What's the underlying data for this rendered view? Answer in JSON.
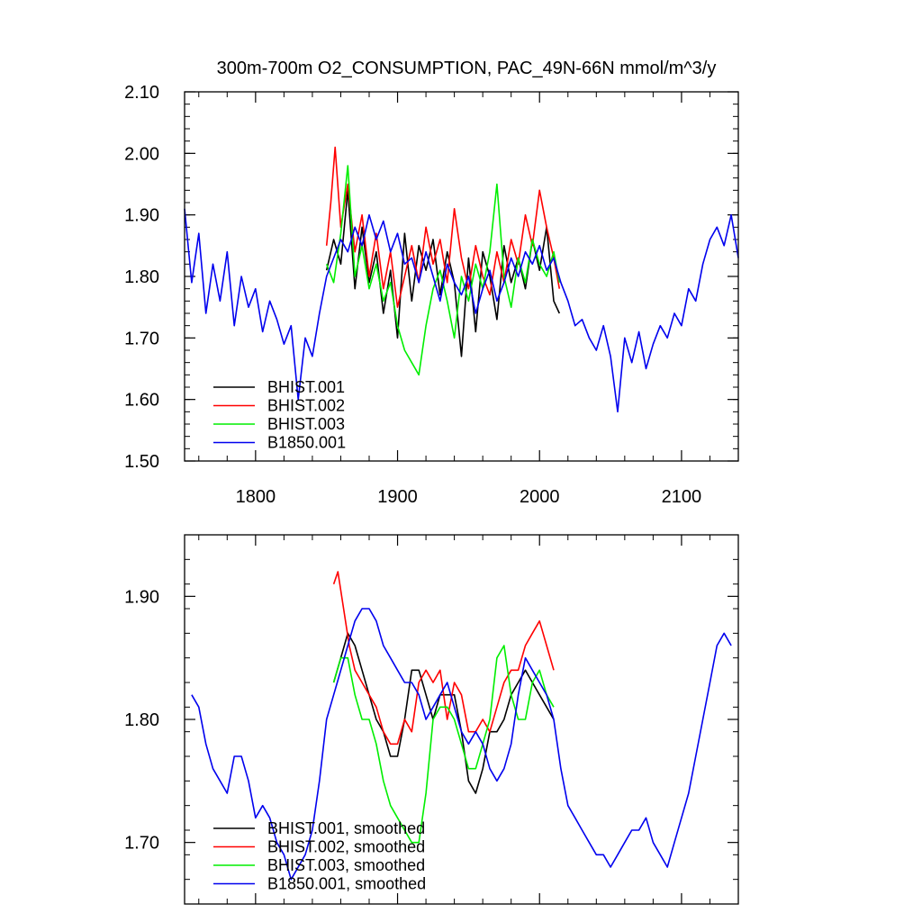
{
  "chart_data": [
    {
      "type": "line",
      "title": "300m-700m O2_CONSUMPTION, PAC_49N-66N  mmol/m^3/y",
      "xlabel": "",
      "ylabel": "",
      "xlim": [
        1750,
        2140
      ],
      "ylim": [
        1.5,
        2.1
      ],
      "x_ticks": [
        1800,
        1900,
        2000,
        2100
      ],
      "x_tick_labels": [
        "1800",
        "1900",
        "2000",
        "2100"
      ],
      "y_ticks": [
        1.5,
        1.6,
        1.7,
        1.8,
        1.9,
        2.0,
        2.1
      ],
      "y_tick_labels": [
        "1.50",
        "1.60",
        "1.70",
        "1.80",
        "1.90",
        "2.00",
        "2.10"
      ],
      "legend_position": "bottom-left",
      "series": [
        {
          "name": "BHIST.001",
          "color": "#000000",
          "x": [
            1850,
            1855,
            1860,
            1865,
            1870,
            1875,
            1880,
            1885,
            1890,
            1895,
            1900,
            1905,
            1910,
            1915,
            1920,
            1925,
            1930,
            1935,
            1940,
            1945,
            1950,
            1955,
            1960,
            1965,
            1970,
            1975,
            1980,
            1985,
            1990,
            1995,
            2000,
            2005,
            2010,
            2014
          ],
          "values": [
            1.81,
            1.86,
            1.82,
            1.94,
            1.78,
            1.88,
            1.79,
            1.84,
            1.74,
            1.81,
            1.7,
            1.87,
            1.76,
            1.85,
            1.81,
            1.86,
            1.77,
            1.84,
            1.79,
            1.67,
            1.83,
            1.71,
            1.84,
            1.8,
            1.73,
            1.85,
            1.79,
            1.83,
            1.78,
            1.86,
            1.81,
            1.88,
            1.76,
            1.74
          ]
        },
        {
          "name": "BHIST.002",
          "color": "#ff0000",
          "x": [
            1850,
            1853,
            1856,
            1860,
            1865,
            1870,
            1875,
            1880,
            1885,
            1890,
            1895,
            1900,
            1905,
            1910,
            1915,
            1920,
            1925,
            1930,
            1935,
            1940,
            1945,
            1950,
            1955,
            1960,
            1965,
            1970,
            1975,
            1980,
            1985,
            1990,
            1995,
            2000,
            2005,
            2010,
            2014
          ],
          "values": [
            1.85,
            1.92,
            2.01,
            1.88,
            1.95,
            1.84,
            1.9,
            1.8,
            1.87,
            1.78,
            1.84,
            1.75,
            1.8,
            1.85,
            1.79,
            1.88,
            1.82,
            1.86,
            1.79,
            1.91,
            1.83,
            1.78,
            1.85,
            1.8,
            1.77,
            1.84,
            1.79,
            1.86,
            1.82,
            1.9,
            1.85,
            1.94,
            1.88,
            1.83,
            1.78
          ]
        },
        {
          "name": "BHIST.003",
          "color": "#00ee00",
          "x": [
            1850,
            1855,
            1860,
            1865,
            1870,
            1875,
            1880,
            1885,
            1890,
            1895,
            1900,
            1905,
            1910,
            1915,
            1920,
            1925,
            1930,
            1935,
            1940,
            1945,
            1950,
            1955,
            1960,
            1965,
            1970,
            1975,
            1980,
            1985,
            1990,
            1995,
            2000,
            2005,
            2010,
            2014
          ],
          "values": [
            1.82,
            1.79,
            1.87,
            1.98,
            1.8,
            1.85,
            1.78,
            1.82,
            1.76,
            1.79,
            1.72,
            1.68,
            1.66,
            1.64,
            1.72,
            1.78,
            1.81,
            1.76,
            1.7,
            1.8,
            1.76,
            1.82,
            1.78,
            1.84,
            1.95,
            1.8,
            1.75,
            1.83,
            1.79,
            1.86,
            1.82,
            1.8,
            1.84,
            1.79
          ]
        },
        {
          "name": "B1850.001",
          "color": "#0000ee",
          "x": [
            1750,
            1755,
            1760,
            1765,
            1770,
            1775,
            1780,
            1785,
            1790,
            1795,
            1800,
            1805,
            1810,
            1815,
            1820,
            1825,
            1830,
            1835,
            1840,
            1845,
            1850,
            1855,
            1860,
            1865,
            1870,
            1875,
            1880,
            1885,
            1890,
            1895,
            1900,
            1905,
            1910,
            1915,
            1920,
            1925,
            1930,
            1935,
            1940,
            1945,
            1950,
            1955,
            1960,
            1965,
            1970,
            1975,
            1980,
            1985,
            1990,
            1995,
            2000,
            2005,
            2010,
            2015,
            2020,
            2025,
            2030,
            2035,
            2040,
            2045,
            2050,
            2055,
            2060,
            2065,
            2070,
            2075,
            2080,
            2085,
            2090,
            2095,
            2100,
            2105,
            2110,
            2115,
            2120,
            2125,
            2130,
            2135,
            2140
          ],
          "values": [
            1.91,
            1.79,
            1.87,
            1.74,
            1.82,
            1.76,
            1.84,
            1.72,
            1.8,
            1.75,
            1.78,
            1.71,
            1.76,
            1.73,
            1.69,
            1.72,
            1.6,
            1.7,
            1.67,
            1.74,
            1.8,
            1.83,
            1.86,
            1.84,
            1.88,
            1.85,
            1.9,
            1.86,
            1.89,
            1.84,
            1.87,
            1.82,
            1.83,
            1.79,
            1.84,
            1.8,
            1.76,
            1.82,
            1.79,
            1.77,
            1.8,
            1.74,
            1.78,
            1.81,
            1.76,
            1.79,
            1.83,
            1.8,
            1.84,
            1.82,
            1.85,
            1.81,
            1.83,
            1.79,
            1.76,
            1.72,
            1.73,
            1.7,
            1.68,
            1.72,
            1.67,
            1.58,
            1.7,
            1.66,
            1.71,
            1.65,
            1.69,
            1.72,
            1.7,
            1.74,
            1.72,
            1.78,
            1.76,
            1.82,
            1.86,
            1.88,
            1.85,
            1.9,
            1.83
          ]
        }
      ]
    },
    {
      "type": "line",
      "title": "",
      "xlabel": "",
      "ylabel": "",
      "xlim": [
        1750,
        2140
      ],
      "ylim": [
        1.65,
        1.95
      ],
      "x_ticks": [
        1800,
        1900,
        2000,
        2100
      ],
      "y_ticks": [
        1.7,
        1.8,
        1.9
      ],
      "y_tick_labels": [
        "1.70",
        "1.80",
        "1.90"
      ],
      "legend_position": "bottom-left",
      "series": [
        {
          "name": "BHIST.001, smoothed",
          "color": "#000000",
          "x": [
            1855,
            1860,
            1865,
            1870,
            1875,
            1880,
            1885,
            1890,
            1895,
            1900,
            1905,
            1910,
            1915,
            1920,
            1925,
            1930,
            1935,
            1940,
            1945,
            1950,
            1955,
            1960,
            1965,
            1970,
            1975,
            1980,
            1985,
            1990,
            1995,
            2000,
            2005,
            2010
          ],
          "values": [
            1.83,
            1.85,
            1.87,
            1.86,
            1.84,
            1.82,
            1.8,
            1.79,
            1.77,
            1.77,
            1.8,
            1.84,
            1.84,
            1.82,
            1.8,
            1.82,
            1.82,
            1.82,
            1.79,
            1.75,
            1.74,
            1.76,
            1.79,
            1.79,
            1.8,
            1.82,
            1.83,
            1.84,
            1.83,
            1.82,
            1.81,
            1.8
          ]
        },
        {
          "name": "BHIST.002, smoothed",
          "color": "#ff0000",
          "x": [
            1855,
            1858,
            1862,
            1866,
            1870,
            1875,
            1880,
            1885,
            1890,
            1895,
            1900,
            1905,
            1910,
            1915,
            1920,
            1925,
            1930,
            1935,
            1940,
            1945,
            1950,
            1955,
            1960,
            1965,
            1970,
            1975,
            1980,
            1985,
            1990,
            1995,
            2000,
            2005,
            2010
          ],
          "values": [
            1.91,
            1.92,
            1.89,
            1.86,
            1.84,
            1.83,
            1.82,
            1.81,
            1.79,
            1.78,
            1.78,
            1.8,
            1.79,
            1.83,
            1.84,
            1.83,
            1.84,
            1.8,
            1.83,
            1.82,
            1.79,
            1.79,
            1.8,
            1.79,
            1.81,
            1.83,
            1.84,
            1.84,
            1.86,
            1.87,
            1.88,
            1.86,
            1.84
          ]
        },
        {
          "name": "BHIST.003, smoothed",
          "color": "#00ee00",
          "x": [
            1855,
            1860,
            1865,
            1870,
            1875,
            1880,
            1885,
            1890,
            1895,
            1900,
            1905,
            1910,
            1915,
            1920,
            1925,
            1930,
            1935,
            1940,
            1945,
            1950,
            1955,
            1960,
            1965,
            1970,
            1975,
            1980,
            1985,
            1990,
            1995,
            2000,
            2005,
            2010
          ],
          "values": [
            1.83,
            1.85,
            1.85,
            1.82,
            1.8,
            1.8,
            1.78,
            1.75,
            1.73,
            1.72,
            1.71,
            1.7,
            1.7,
            1.74,
            1.8,
            1.81,
            1.81,
            1.8,
            1.78,
            1.76,
            1.76,
            1.78,
            1.8,
            1.85,
            1.86,
            1.82,
            1.8,
            1.8,
            1.83,
            1.84,
            1.82,
            1.81
          ]
        },
        {
          "name": "B1850.001, smoothed",
          "color": "#0000ee",
          "x": [
            1755,
            1760,
            1765,
            1770,
            1775,
            1780,
            1785,
            1790,
            1795,
            1800,
            1805,
            1810,
            1815,
            1820,
            1825,
            1830,
            1835,
            1840,
            1845,
            1850,
            1855,
            1860,
            1865,
            1870,
            1875,
            1880,
            1885,
            1890,
            1895,
            1900,
            1905,
            1910,
            1915,
            1920,
            1925,
            1930,
            1935,
            1940,
            1945,
            1950,
            1955,
            1960,
            1965,
            1970,
            1975,
            1980,
            1985,
            1990,
            1995,
            2000,
            2005,
            2010,
            2015,
            2020,
            2025,
            2030,
            2035,
            2040,
            2045,
            2050,
            2055,
            2060,
            2065,
            2070,
            2075,
            2080,
            2085,
            2090,
            2095,
            2100,
            2105,
            2110,
            2115,
            2120,
            2125,
            2130,
            2135
          ],
          "values": [
            1.82,
            1.81,
            1.78,
            1.76,
            1.75,
            1.74,
            1.77,
            1.77,
            1.75,
            1.72,
            1.73,
            1.72,
            1.7,
            1.69,
            1.67,
            1.68,
            1.69,
            1.71,
            1.75,
            1.8,
            1.82,
            1.84,
            1.86,
            1.88,
            1.89,
            1.89,
            1.88,
            1.86,
            1.85,
            1.84,
            1.83,
            1.83,
            1.82,
            1.8,
            1.81,
            1.82,
            1.83,
            1.81,
            1.79,
            1.78,
            1.79,
            1.78,
            1.76,
            1.75,
            1.76,
            1.78,
            1.82,
            1.85,
            1.84,
            1.83,
            1.82,
            1.8,
            1.76,
            1.73,
            1.72,
            1.71,
            1.7,
            1.69,
            1.69,
            1.68,
            1.69,
            1.7,
            1.71,
            1.71,
            1.72,
            1.7,
            1.69,
            1.68,
            1.7,
            1.72,
            1.74,
            1.77,
            1.8,
            1.83,
            1.86,
            1.87,
            1.86
          ]
        }
      ]
    }
  ]
}
